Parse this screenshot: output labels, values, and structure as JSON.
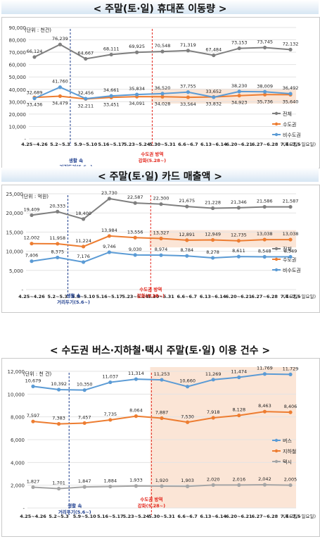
{
  "sections": [
    {
      "title": "< 주말(토·일) 휴대폰 이동량 >"
    },
    {
      "title": "< 주말(토·일) 카드 매출액 >"
    },
    {
      "title": "< 수도권 버스·지하철·택시 주말(토·일) 이용 건수 >"
    }
  ],
  "colors": {
    "total": "#7f7f7f",
    "metro": "#ed7d31",
    "nonmetro": "#5b9bd5",
    "highlight": "#fbe5d6",
    "annotation_blue": "#1f3f8f",
    "annotation_red": "#e3261c"
  },
  "chart_data": [
    {
      "type": "line",
      "title": "< 주말(토·일) 휴대폰 이동량 >",
      "unit_label": "(단위 : 천건)",
      "x_unit_label": "(토요일~일요일)",
      "categories": [
        "4.25~4.26",
        "5.2~5.3",
        "5.9~5.10",
        "5.16~5.17",
        "5.23~5.24",
        "5.30~5.31",
        "6.6~6.7",
        "6.13~6.14",
        "6.20~6.21",
        "6.27~6.28",
        "7.4~7.5"
      ],
      "ylim": [
        0,
        90000
      ],
      "yticks": [
        "-",
        "10,000",
        "20,000",
        "30,000",
        "40,000",
        "50,000",
        "60,000",
        "70,000",
        "80,000",
        "90,000"
      ],
      "series": [
        {
          "name": "전체",
          "color": "#7f7f7f",
          "values": [
            66124,
            76239,
            64667,
            68111,
            69925,
            70548,
            71319,
            67484,
            73153,
            73745,
            72132
          ],
          "labels": [
            "66,124",
            "76,239",
            "64,667",
            "68,111",
            "69,925",
            "70,548",
            "71,319",
            "67,484",
            "73,153",
            "73,745",
            "72,132"
          ]
        },
        {
          "name": "수도권",
          "color": "#ed7d31",
          "values": [
            33436,
            34479,
            32211,
            33451,
            34091,
            34028,
            33564,
            33832,
            34923,
            35736,
            35640
          ],
          "labels": [
            "33,436",
            "34,479",
            "32,211",
            "33,451",
            "34,091",
            "34,028",
            "33,564",
            "33,832",
            "34,923",
            "35,736",
            "35,640"
          ]
        },
        {
          "name": "비수도권",
          "color": "#5b9bd5",
          "values": [
            32689,
            41760,
            32456,
            34661,
            35834,
            36520,
            37755,
            33652,
            38230,
            38009,
            36492
          ],
          "labels": [
            "32,689",
            "41,760",
            "32,456",
            "34,661",
            "35,834",
            "36,520",
            "37,755",
            "33,652",
            "38,230",
            "38,009",
            "36,492"
          ]
        }
      ],
      "annotations": [
        {
          "text_lines": [
            "생활 속",
            "거리두기(5.6~)"
          ],
          "color": "#1f3f8f"
        },
        {
          "text_lines": [
            "수도권 방역",
            "강화(5.28~)"
          ],
          "color": "#e3261c"
        }
      ]
    },
    {
      "type": "line",
      "title": "< 주말(토·일) 카드 매출액 >",
      "unit_label": "(단위 : 억원)",
      "x_unit_label": "(토요일~일요일)",
      "categories": [
        "4.25~4.26",
        "5.2~5.3",
        "5.9~5.10",
        "5.16~5.17",
        "5.23~5.24",
        "5.30~5.31",
        "6.6~6.7",
        "6.13~6.14",
        "6.20~6.21",
        "6.27~6.28",
        "7.4~7.5"
      ],
      "ylim": [
        0,
        25000
      ],
      "yticks": [
        "-",
        "5,000",
        "10,000",
        "15,000",
        "20,000",
        "25,000"
      ],
      "series": [
        {
          "name": "전체",
          "color": "#7f7f7f",
          "values": [
            19409,
            20333,
            18400,
            23730,
            22587,
            22300,
            21675,
            21228,
            21346,
            21586,
            21587
          ],
          "labels": [
            "19,409",
            "20,333",
            "18,400",
            "23,730",
            "22,587",
            "22,300",
            "21,675",
            "21,228",
            "21,346",
            "21,586",
            "21,587"
          ]
        },
        {
          "name": "수도권",
          "color": "#ed7d31",
          "values": [
            12002,
            11958,
            11224,
            13984,
            13556,
            13327,
            12891,
            12949,
            12735,
            13038,
            13038
          ],
          "labels": [
            "12,002",
            "11,958",
            "11,224",
            "13,984",
            "13,556",
            "13,327",
            "12,891",
            "12,949",
            "12,735",
            "13,038",
            "13,038"
          ]
        },
        {
          "name": "비수도권",
          "color": "#5b9bd5",
          "values": [
            7406,
            8375,
            7176,
            9746,
            9030,
            8974,
            8784,
            8278,
            8611,
            8548,
            8549
          ],
          "labels": [
            "7,406",
            "8,375",
            "7,176",
            "9,746",
            "9,030",
            "8,974",
            "8,784",
            "8,278",
            "8,611",
            "8,548",
            "8,549"
          ]
        }
      ],
      "annotations": [
        {
          "text_lines": [
            "생활 속",
            "거리두기(5.6~)"
          ],
          "color": "#1f3f8f"
        },
        {
          "text_lines": [
            "수도권 방역",
            "강화(5.28~)"
          ],
          "color": "#e3261c"
        }
      ]
    },
    {
      "type": "line",
      "title": "< 수도권 버스·지하철·택시 주말(토·일) 이용 건수 >",
      "unit_label": "(단위 : 천 건)",
      "x_unit_label": "(토요일~일요일)",
      "categories": [
        "4.25~4.26",
        "5.2~5.3",
        "5.9~5.10",
        "5.16~5.17",
        "5.23~5.24",
        "5.30~5.31",
        "6.6~6.7",
        "6.13~6.14",
        "6.20~6.21",
        "6.27~6.28",
        "7.4~7.5"
      ],
      "ylim": [
        0,
        12000
      ],
      "yticks": [
        "-",
        "2,000",
        "4,000",
        "6,000",
        "8,000",
        "10,000",
        "12,000"
      ],
      "series": [
        {
          "name": "버스",
          "color": "#5b9bd5",
          "values": [
            10679,
            10392,
            10350,
            11037,
            11314,
            11253,
            10660,
            11269,
            11474,
            11769,
            11729
          ],
          "labels": [
            "10,679",
            "10,392",
            "10,350",
            "11,037",
            "11,314",
            "11,253",
            "10,660",
            "11,269",
            "11,474",
            "11,769",
            "11,729"
          ]
        },
        {
          "name": "지하철",
          "color": "#ed7d31",
          "values": [
            7597,
            7383,
            7457,
            7735,
            8064,
            7887,
            7530,
            7918,
            8128,
            8463,
            8406
          ],
          "labels": [
            "7,597",
            "7,383",
            "7,457",
            "7,735",
            "8,064",
            "7,887",
            "7,530",
            "7,918",
            "8,128",
            "8,463",
            "8,406"
          ]
        },
        {
          "name": "택시",
          "color": "#a5a5a5",
          "values": [
            1827,
            1701,
            1847,
            1884,
            1933,
            1920,
            1903,
            2020,
            2016,
            2042,
            2005
          ],
          "labels": [
            "1,827",
            "1,701",
            "1,847",
            "1,884",
            "1,933",
            "1,920",
            "1,903",
            "2,020",
            "2,016",
            "2,042",
            "2,005"
          ]
        }
      ],
      "annotations": [
        {
          "text_lines": [
            "생활 속",
            "거리두기(5.6~)"
          ],
          "color": "#1f3f8f"
        },
        {
          "text_lines": [
            "수도권 방역",
            "강화(5.28~)"
          ],
          "color": "#e3261c"
        }
      ]
    }
  ]
}
